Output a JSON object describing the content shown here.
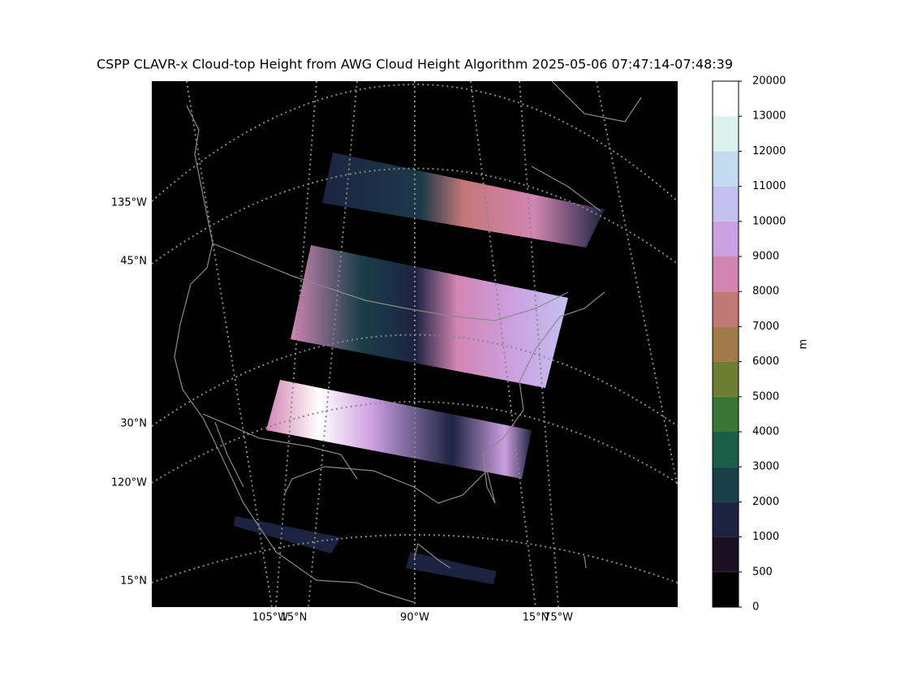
{
  "title": "CSPP CLAVR-x Cloud-top Height from AWG Cloud Height Algorithm 2025-05-06 07:47:14-07:48:39",
  "left_labels": [
    "135°W",
    "45°N",
    "30°N",
    "120°W",
    "15°N"
  ],
  "bottom_labels": [
    "105°W",
    "15°N",
    "90°W",
    "15°N",
    "75°W"
  ],
  "colorbar": {
    "label": "m",
    "ticks": [
      0,
      500,
      1000,
      2000,
      3000,
      4000,
      5000,
      6000,
      7000,
      8000,
      9000,
      10000,
      11000,
      12000,
      13000,
      20000
    ],
    "colors": [
      "#000000",
      "#1b0f22",
      "#1c2341",
      "#193f4a",
      "#1b5e48",
      "#3a7534",
      "#6b7d33",
      "#a07a48",
      "#c37877",
      "#d285b3",
      "#cca0e0",
      "#c3c0f0",
      "#c5dcf0",
      "#dcf1ec",
      "#ffffff"
    ]
  }
}
